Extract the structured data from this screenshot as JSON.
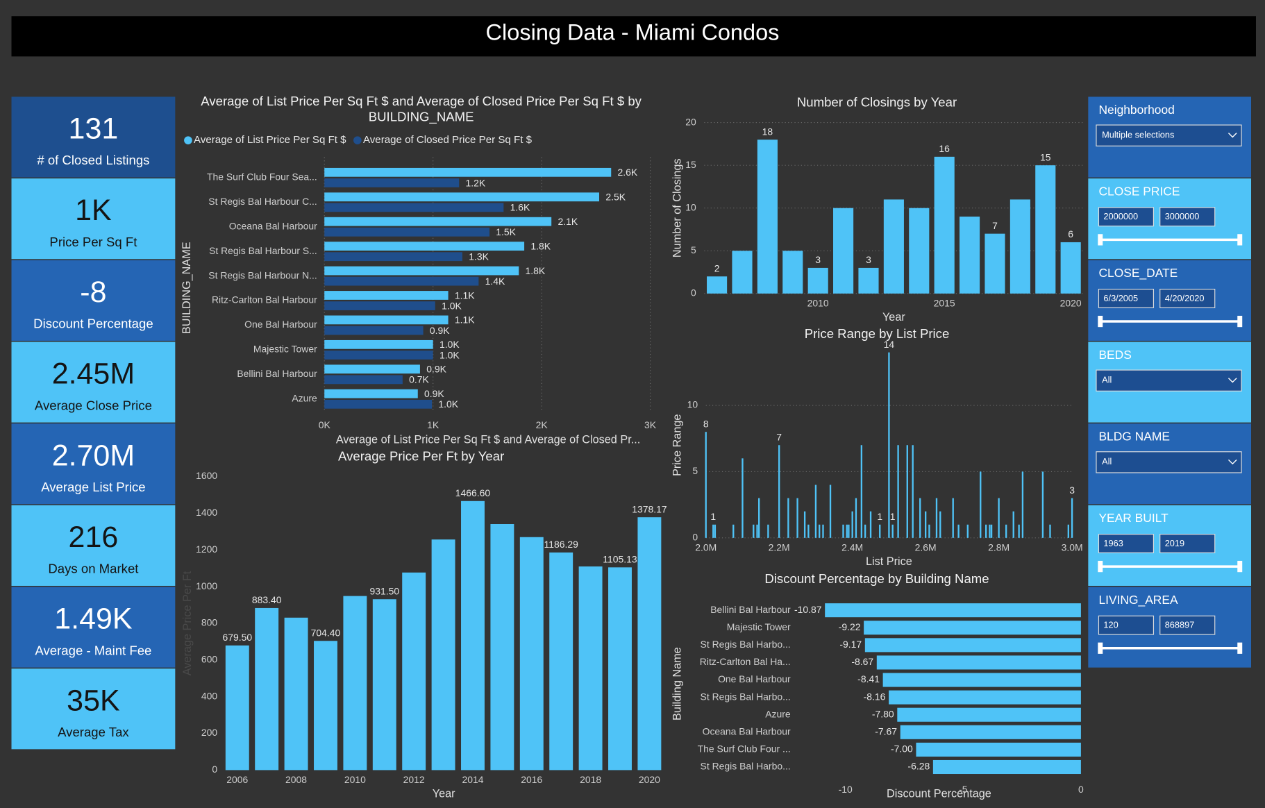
{
  "title": "Closing Data - Miami Condos",
  "kpis": [
    {
      "value": "131",
      "label": "# of Closed Listings"
    },
    {
      "value": "1K",
      "label": "Price Per Sq Ft"
    },
    {
      "value": "-8",
      "label": "Discount Percentage"
    },
    {
      "value": "2.45M",
      "label": "Average Close Price"
    },
    {
      "value": "2.70M",
      "label": "Average List Price"
    },
    {
      "value": "216",
      "label": "Days on Market"
    },
    {
      "value": "1.49K",
      "label": "Average - Maint Fee"
    },
    {
      "value": "35K",
      "label": "Average Tax"
    }
  ],
  "chart_data": [
    {
      "type": "hbar",
      "title": "Average of List Price Per Sq Ft $ and Average of Closed Price Per Sq Ft $ by BUILDING_NAME",
      "x_label": "Average of List Price Per Sq Ft $ and Average of Closed Pr...",
      "y_label": "BUILDING_NAME",
      "categories": [
        "The Surf Club Four Sea...",
        "St Regis Bal Harbour C...",
        "Oceana Bal Harbour",
        "St Regis Bal Harbour S...",
        "St Regis Bal Harbour N...",
        "Ritz-Carlton Bal Harbour",
        "One Bal Harbour",
        "Majestic Tower",
        "Bellini Bal Harbour",
        "Azure"
      ],
      "series": [
        {
          "name": "Average of List Price Per Sq Ft $",
          "color": "#4fc3f7",
          "values": [
            2640,
            2530,
            2090,
            1840,
            1790,
            1140,
            1140,
            1000,
            880,
            860
          ],
          "value_labels": [
            "2.6K",
            "2.5K",
            "2.1K",
            "1.8K",
            "1.8K",
            "1.1K",
            "1.1K",
            "1.0K",
            "0.9K",
            "0.9K"
          ]
        },
        {
          "name": "Average of Closed Price Per Sq Ft $",
          "color": "#1f4e8c",
          "values": [
            1240,
            1650,
            1520,
            1270,
            1420,
            1020,
            910,
            1000,
            720,
            990
          ],
          "value_labels": [
            "1.2K",
            "1.6K",
            "1.5K",
            "1.3K",
            "1.4K",
            "1.0K",
            "0.9K",
            "1.0K",
            "0.7K",
            "1.0K"
          ]
        }
      ],
      "xlim": [
        0,
        3000
      ],
      "xticks": [
        {
          "value": 0,
          "label": "0K"
        },
        {
          "value": 1000,
          "label": "1K"
        },
        {
          "value": 2000,
          "label": "2K"
        },
        {
          "value": 3000,
          "label": "3K"
        }
      ],
      "grid": true,
      "legend": "top"
    },
    {
      "type": "bar",
      "title": "Number of Closings by Year",
      "x_label": "Year",
      "y_label": "Number of Closings",
      "color": "#4fc3f7",
      "x": [
        2006,
        2007,
        2008,
        2009,
        2010,
        2011,
        2012,
        2013,
        2014,
        2015,
        2016,
        2017,
        2018,
        2019,
        2020
      ],
      "values": [
        2,
        5,
        18,
        5,
        3,
        10,
        3,
        11,
        10,
        16,
        9,
        7,
        11,
        15,
        6
      ],
      "value_labels": [
        "2",
        null,
        "18",
        null,
        "3",
        null,
        "3",
        null,
        null,
        "16",
        null,
        "7",
        null,
        "15",
        "6"
      ],
      "xlim": [
        2005.5,
        2020.5
      ],
      "xticks": [
        2010,
        2015,
        2020
      ],
      "ylim": [
        0,
        20
      ],
      "yticks": [
        0,
        5,
        10,
        15,
        20
      ],
      "grid": true
    },
    {
      "type": "bar",
      "title": "Price Range by List Price",
      "x_label": "List Price",
      "y_label": "Price Range",
      "color": "#4fc3f7",
      "x": [
        2000000,
        2020000,
        2025000,
        2075000,
        2100000,
        2130000,
        2140000,
        2145000,
        2170000,
        2200000,
        2225000,
        2250000,
        2270000,
        2280000,
        2300000,
        2310000,
        2320000,
        2340000,
        2375000,
        2385000,
        2390000,
        2400000,
        2410000,
        2425000,
        2435000,
        2450000,
        2475000,
        2500000,
        2510000,
        2525000,
        2550000,
        2565000,
        2585000,
        2600000,
        2610000,
        2630000,
        2640000,
        2675000,
        2690000,
        2715000,
        2750000,
        2765000,
        2775000,
        2780000,
        2800000,
        2820000,
        2840000,
        2855000,
        2865000,
        2920000,
        2940000,
        2990000,
        3000000
      ],
      "values": [
        8,
        1,
        1,
        1,
        6,
        1,
        1,
        3,
        1,
        7,
        3,
        3,
        2,
        1,
        4,
        1,
        1,
        4,
        1,
        1,
        1,
        2,
        3,
        7,
        1,
        2,
        1,
        14,
        1,
        7,
        7,
        7,
        3,
        2,
        1,
        3,
        2,
        3,
        1,
        1,
        5,
        1,
        1,
        1,
        3,
        1,
        2,
        1,
        5,
        5,
        1,
        1,
        3
      ],
      "value_labels": [
        "8",
        "1",
        null,
        null,
        null,
        null,
        null,
        null,
        null,
        "7",
        null,
        null,
        null,
        null,
        null,
        null,
        null,
        null,
        null,
        null,
        null,
        null,
        null,
        null,
        null,
        null,
        "1",
        "14",
        "1",
        null,
        null,
        null,
        null,
        null,
        null,
        null,
        null,
        null,
        null,
        null,
        null,
        null,
        null,
        null,
        null,
        null,
        null,
        null,
        null,
        null,
        null,
        null,
        "3"
      ],
      "xlim": [
        2000000,
        3000000
      ],
      "xticks": [
        {
          "value": 2000000,
          "label": "2.0M"
        },
        {
          "value": 2200000,
          "label": "2.2M"
        },
        {
          "value": 2400000,
          "label": "2.4M"
        },
        {
          "value": 2600000,
          "label": "2.6M"
        },
        {
          "value": 2800000,
          "label": "2.8M"
        },
        {
          "value": 3000000,
          "label": "3.0M"
        }
      ],
      "ylim": [
        0,
        14
      ],
      "yticks": [
        0,
        5,
        10
      ],
      "grid": true
    },
    {
      "type": "bar",
      "title": "Average Price Per Ft by Year",
      "x_label": "Year",
      "y_label": "Average Price Per Ft",
      "color": "#4fc3f7",
      "x": [
        2006,
        2007,
        2008,
        2009,
        2010,
        2011,
        2012,
        2013,
        2014,
        2015,
        2016,
        2017,
        2018,
        2019,
        2020
      ],
      "values": [
        679.5,
        883.4,
        831,
        704.4,
        949,
        931.5,
        1077,
        1257,
        1466.6,
        1341,
        1270,
        1186.29,
        1110,
        1105.13,
        1378.17
      ],
      "value_labels": [
        "679.50",
        "883.40",
        null,
        "704.40",
        null,
        "931.50",
        null,
        null,
        "1466.60",
        null,
        null,
        "1186.29",
        null,
        "1105.13",
        "1378.17"
      ],
      "xlim": [
        2005.6,
        2020.4
      ],
      "xticks": [
        2006,
        2008,
        2010,
        2012,
        2014,
        2016,
        2018,
        2020
      ],
      "ylim": [
        0,
        1600
      ],
      "yticks": [
        0,
        200,
        400,
        600,
        800,
        1000,
        1200,
        1400,
        1600
      ],
      "grid": false
    },
    {
      "type": "hbar",
      "title": "Discount Percentage by Building Name",
      "x_label": "Discount Percentage",
      "y_label": "Building Name",
      "color": "#4fc3f7",
      "categories": [
        "Bellini Bal Harbour",
        "Majestic Tower",
        "St Regis Bal Harbo...",
        "Ritz-Carlton Bal Ha...",
        "One Bal Harbour",
        "St Regis Bal Harbo...",
        "Azure",
        "Oceana Bal Harbour",
        "The Surf Club Four ...",
        "St Regis Bal Harbo..."
      ],
      "values": [
        -10.87,
        -9.22,
        -9.17,
        -8.67,
        -8.41,
        -8.16,
        -7.8,
        -7.67,
        -7.0,
        -6.28
      ],
      "value_labels": [
        "-10.87",
        "-9.22",
        "-9.17",
        "-8.67",
        "-8.41",
        "-8.16",
        "-7.80",
        "-7.67",
        "-7.00",
        "-6.28"
      ],
      "xlim": [
        -11,
        0
      ],
      "xticks": [
        -10,
        -5,
        0
      ],
      "grid": false
    }
  ],
  "filters": [
    {
      "label": "Neighborhood",
      "selection": "Multiple selections"
    },
    {
      "label": "CLOSE PRICE",
      "range": [
        "2000000",
        "3000000"
      ]
    },
    {
      "label": "CLOSE_DATE",
      "range": [
        "6/3/2005",
        "4/20/2020"
      ]
    },
    {
      "label": "BEDS",
      "selection": "All"
    },
    {
      "label": "BLDG NAME",
      "selection": "All"
    },
    {
      "label": "YEAR BUILT",
      "range": [
        "1963",
        "2019"
      ]
    },
    {
      "label": "LIVING_AREA",
      "range": [
        "120",
        "868897"
      ]
    }
  ]
}
